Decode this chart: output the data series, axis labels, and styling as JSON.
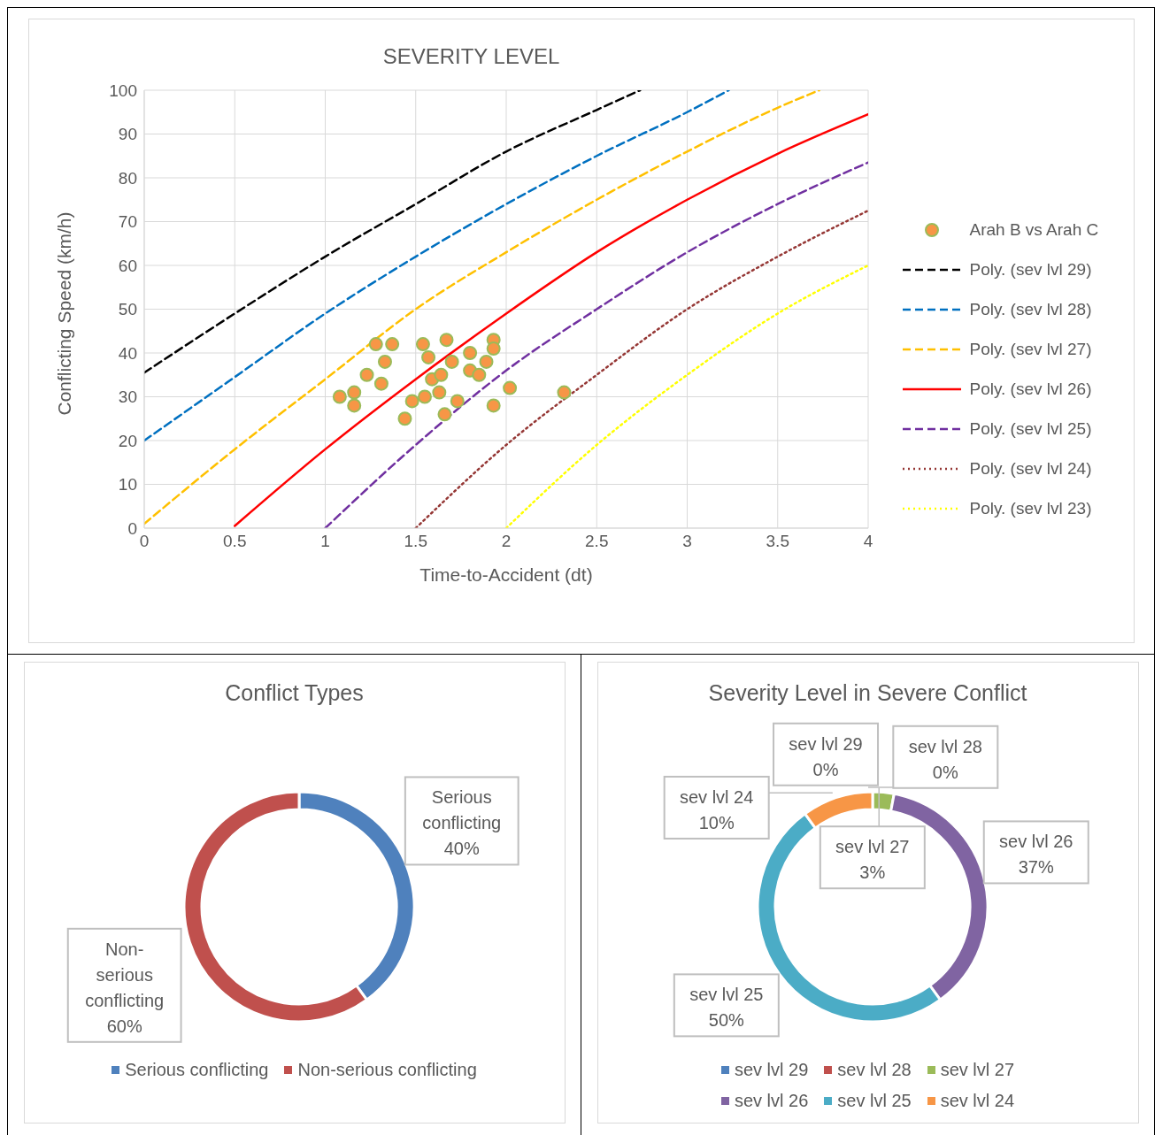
{
  "chart_data": [
    {
      "type": "scatter",
      "title": "SEVERITY LEVEL",
      "xlabel": "Time-to-Accident (dt)",
      "ylabel": "Conflicting Speed (km/h)",
      "xlim": [
        0,
        4
      ],
      "xticks": [
        0,
        0.5,
        1,
        1.5,
        2,
        2.5,
        3,
        3.5,
        4
      ],
      "ylim": [
        0,
        100
      ],
      "yticks": [
        0,
        10,
        20,
        30,
        40,
        50,
        60,
        70,
        80,
        90,
        100
      ],
      "grid": true,
      "legend": "right",
      "series": [
        {
          "name": "Arah B vs Arah C",
          "type": "scatter",
          "color": "#f79646",
          "marker": "circle",
          "x": [
            1.08,
            1.16,
            1.16,
            1.28,
            1.37,
            1.23,
            1.33,
            1.31,
            1.44,
            1.48,
            1.54,
            1.57,
            1.67,
            1.59,
            1.64,
            1.63,
            1.55,
            1.66,
            1.7,
            1.73,
            1.8,
            1.8,
            1.85,
            1.89,
            1.93,
            1.93,
            1.93,
            2.02,
            2.32
          ],
          "values": [
            30,
            31,
            28,
            42,
            42,
            35,
            38,
            33,
            25,
            29,
            42,
            39,
            43,
            34,
            35,
            31,
            30,
            26,
            38,
            29,
            40,
            36,
            35,
            38,
            43,
            41,
            28,
            32,
            31
          ]
        },
        {
          "name": "Poly. (sev lvl 29)",
          "type": "line",
          "color": "#000000",
          "line_style": "dashed",
          "x": [
            0,
            0.5,
            1,
            1.5,
            2,
            2.5,
            2.74
          ],
          "values": [
            35.5,
            49,
            62,
            74,
            86,
            95.5,
            100
          ]
        },
        {
          "name": "Poly. (sev lvl 28)",
          "type": "line",
          "color": "#0070c0",
          "line_style": "dashed",
          "x": [
            0,
            0.5,
            1,
            1.5,
            2,
            2.5,
            3,
            3.23
          ],
          "values": [
            20,
            34.5,
            49,
            62,
            74,
            85,
            95,
            100
          ]
        },
        {
          "name": "Poly. (sev lvl 27)",
          "type": "line",
          "color": "#ffc000",
          "line_style": "dashed",
          "x": [
            0,
            0.5,
            1,
            1.5,
            2,
            2.5,
            3,
            3.5,
            3.73
          ],
          "values": [
            1,
            18,
            34,
            50,
            63,
            75,
            86,
            96,
            100
          ]
        },
        {
          "name": "Poly. (sev lvl 26)",
          "type": "line",
          "color": "#ff0000",
          "line_style": "solid",
          "x": [
            0.5,
            1,
            1.5,
            2,
            2.5,
            3,
            3.5,
            4
          ],
          "values": [
            0.5,
            18,
            34,
            49,
            63,
            75,
            85.5,
            94.5
          ]
        },
        {
          "name": "Poly. (sev lvl 25)",
          "type": "line",
          "color": "#7030a0",
          "line_style": "dashed",
          "x": [
            1,
            1.5,
            2,
            2.5,
            3,
            3.5,
            4
          ],
          "values": [
            0,
            19,
            36,
            50,
            63,
            74,
            83.5
          ]
        },
        {
          "name": "Poly. (sev lvl 24)",
          "type": "line",
          "color": "#953735",
          "line_style": "dotted",
          "x": [
            1.5,
            2,
            2.5,
            3,
            3.5,
            4
          ],
          "values": [
            0,
            19,
            35,
            50,
            62,
            72.5
          ]
        },
        {
          "name": "Poly. (sev lvl 23)",
          "type": "line",
          "color": "#ffff00",
          "line_style": "dotted",
          "x": [
            2,
            2.5,
            3,
            3.5,
            4
          ],
          "values": [
            0,
            19,
            35,
            49,
            60
          ]
        }
      ]
    },
    {
      "type": "donut",
      "title": "Conflict Types",
      "categories": [
        "Serious conflicting",
        "Non-serious conflicting"
      ],
      "values": [
        40,
        60
      ],
      "colors": [
        "#4f81bd",
        "#c0504d"
      ],
      "value_labels": [
        "40%",
        "60%"
      ],
      "legend": "bottom"
    },
    {
      "type": "donut",
      "title": "Severity Level in Severe Conflict",
      "categories": [
        "sev lvl 29",
        "sev lvl 28",
        "sev lvl 27",
        "sev lvl 26",
        "sev lvl 25",
        "sev lvl 24"
      ],
      "values": [
        0,
        0,
        3,
        37,
        50,
        10
      ],
      "colors": [
        "#4f81bd",
        "#c0504d",
        "#9bbb59",
        "#8064a2",
        "#4bacc6",
        "#f79646"
      ],
      "value_labels": [
        "0%",
        "0%",
        "3%",
        "37%",
        "50%",
        "10%"
      ],
      "legend": "bottom"
    }
  ]
}
